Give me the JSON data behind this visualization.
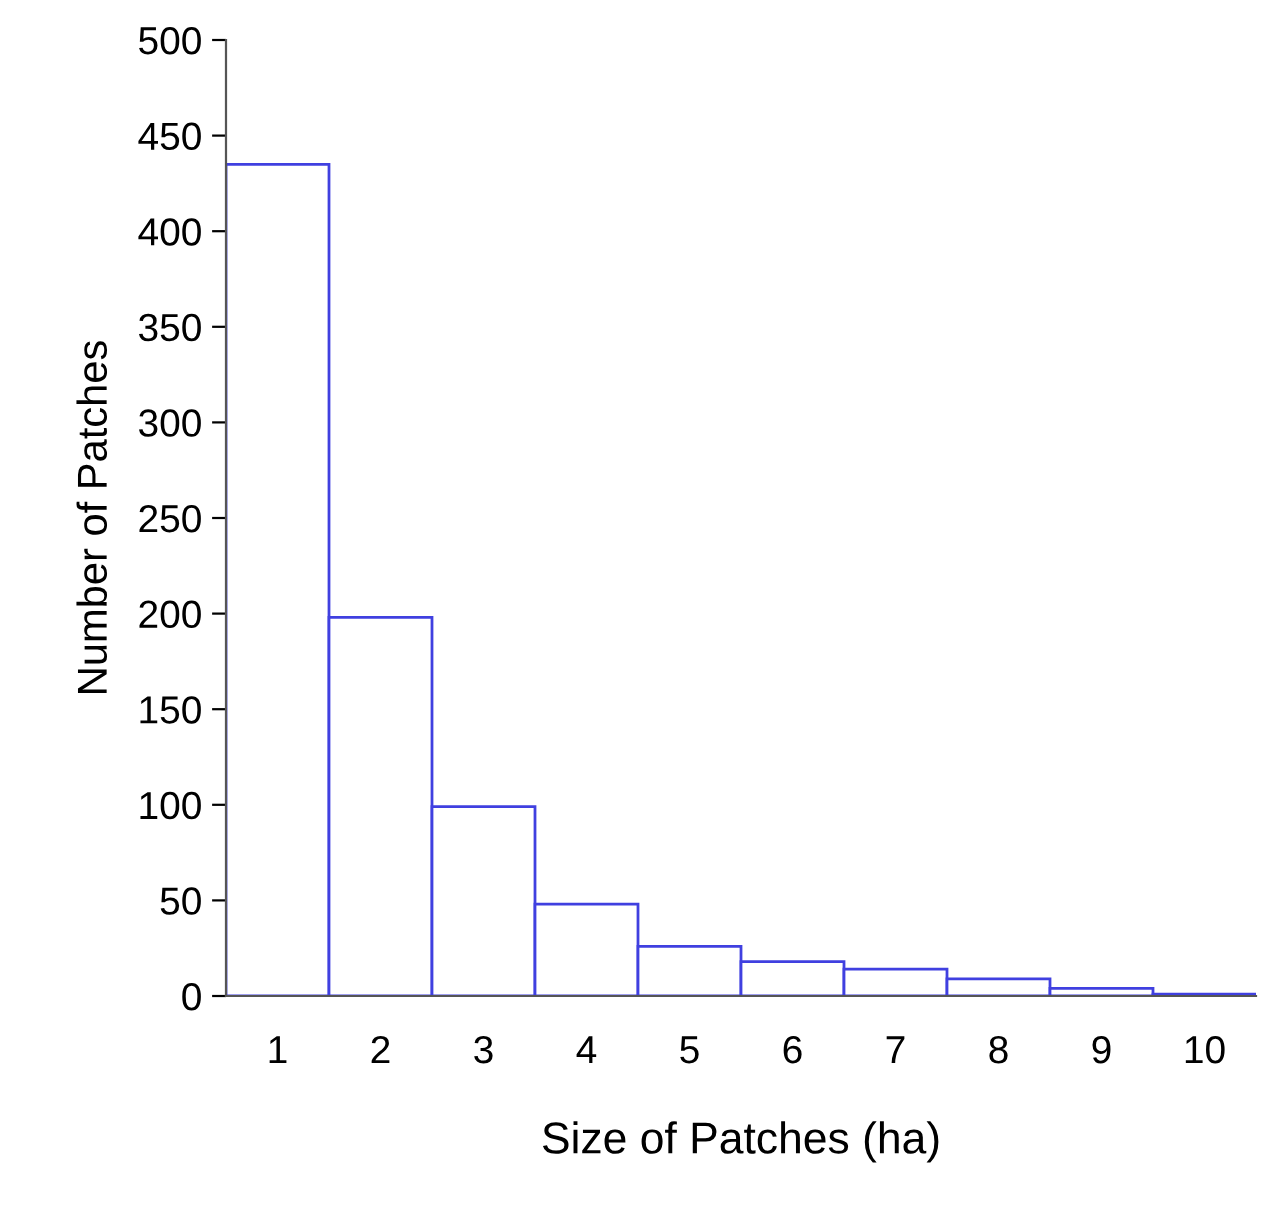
{
  "chart_data": {
    "type": "bar",
    "xlabel": "Size of Patches (ha)",
    "ylabel": "Number of Patches",
    "categories": [
      "1",
      "2",
      "3",
      "4",
      "5",
      "6",
      "7",
      "8",
      "9",
      "10"
    ],
    "values": [
      435,
      198,
      99,
      48,
      26,
      18,
      14,
      9,
      4,
      1
    ],
    "color": "#4040e0",
    "ylim": [
      0,
      500
    ],
    "yticks": [
      0,
      50,
      100,
      150,
      200,
      250,
      300,
      350,
      400,
      450,
      500
    ],
    "grid": false,
    "legend": false
  }
}
